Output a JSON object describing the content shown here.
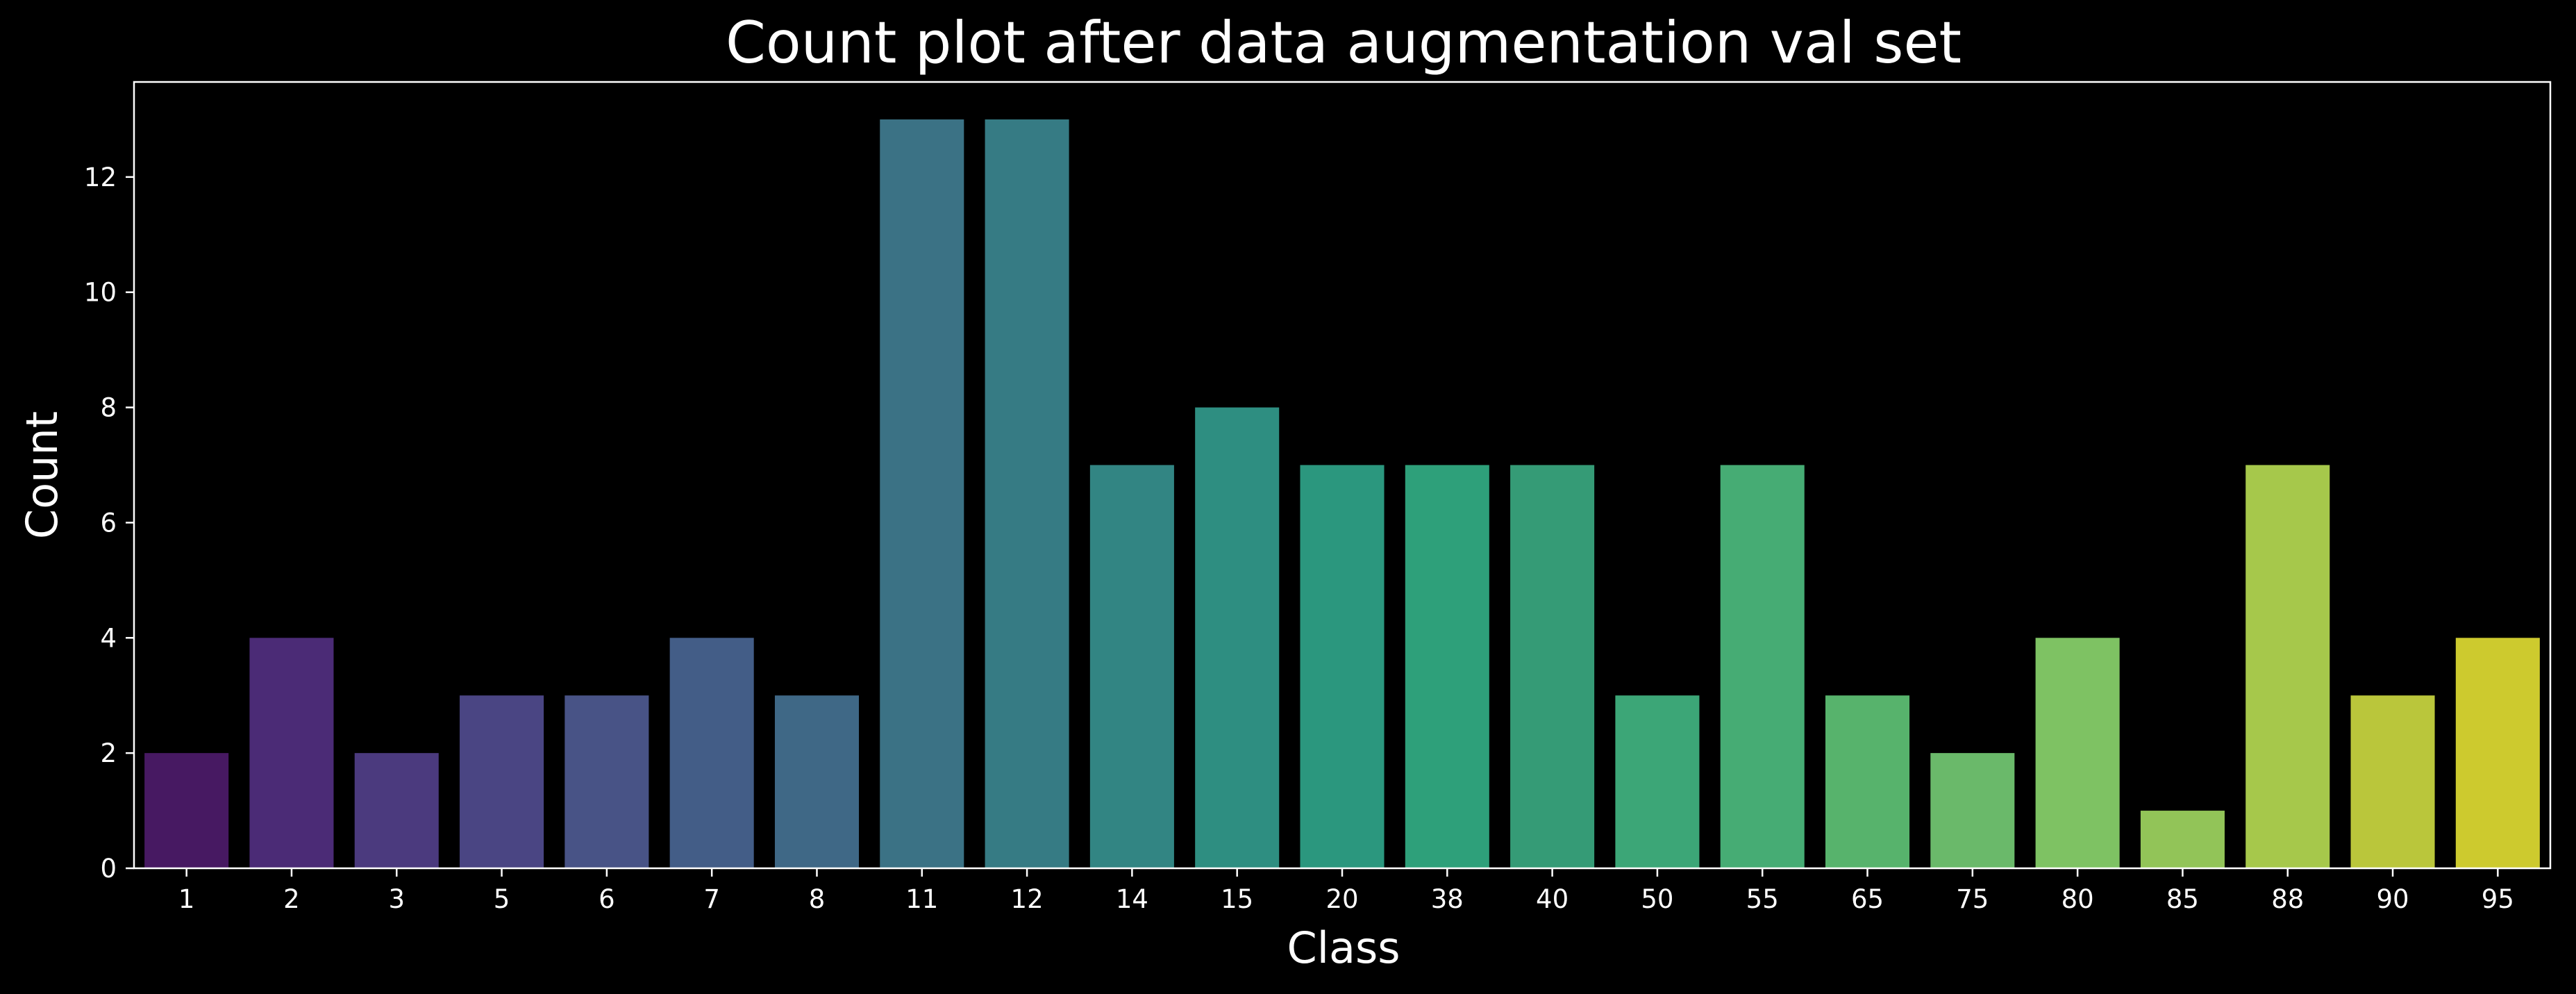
{
  "chart_data": {
    "type": "bar",
    "title": "Count plot after data augmentation val set",
    "xlabel": "Class",
    "ylabel": "Count",
    "categories": [
      "1",
      "2",
      "3",
      "5",
      "6",
      "7",
      "8",
      "11",
      "12",
      "14",
      "15",
      "20",
      "38",
      "40",
      "50",
      "55",
      "65",
      "75",
      "80",
      "85",
      "88",
      "90",
      "95"
    ],
    "values": [
      2,
      4,
      2,
      3,
      3,
      4,
      3,
      13,
      13,
      7,
      8,
      7,
      7,
      7,
      3,
      7,
      3,
      2,
      4,
      1,
      7,
      3,
      4
    ],
    "colors": [
      "#471962",
      "#4b2b76",
      "#4b3a7e",
      "#4a4583",
      "#485386",
      "#435d87",
      "#3f6886",
      "#3b7285",
      "#367b84",
      "#328583",
      "#2e8e81",
      "#2b977e",
      "#2ea07a",
      "#359b76",
      "#3ca677",
      "#46ac74",
      "#57b36c",
      "#6ab96a",
      "#7ec263",
      "#92c458",
      "#a6c84b",
      "#bac63b",
      "#cdca2e"
    ],
    "yticks": [
      0,
      2,
      4,
      6,
      8,
      10,
      12
    ],
    "ylim": [
      0,
      13.65
    ],
    "grid": false,
    "legend": false
  }
}
